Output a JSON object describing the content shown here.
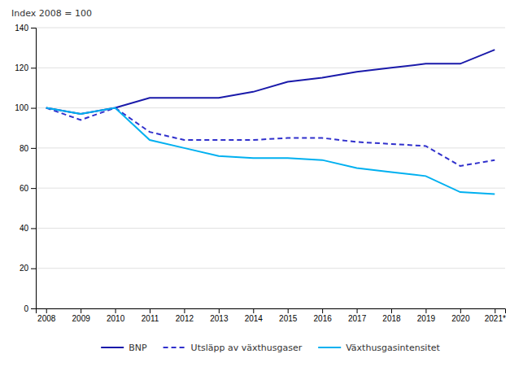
{
  "chart_data": {
    "type": "line",
    "y_label": "Index 2008 = 100",
    "x": [
      2008,
      2009,
      2010,
      2011,
      2012,
      2013,
      2014,
      2015,
      2016,
      2017,
      2018,
      2019,
      2020,
      2021
    ],
    "series": [
      {
        "name": "BNP",
        "color": "#1a1aaa",
        "line_style": "solid",
        "values": [
          100,
          97,
          100,
          105,
          105,
          105,
          108,
          113,
          115,
          118,
          120,
          122,
          122,
          129
        ]
      },
      {
        "name": "Utsläpp av växthusgaser",
        "color": "#3030cc",
        "line_style": "dashed",
        "values": [
          100,
          94,
          100,
          88,
          84,
          84,
          84,
          85,
          85,
          83,
          82,
          81,
          71,
          74
        ]
      },
      {
        "name": "Växthusgasintensitet",
        "color": "#00b0f0",
        "line_style": "solid",
        "values": [
          100,
          97,
          100,
          84,
          80,
          76,
          75,
          75,
          74,
          70,
          68,
          66,
          58,
          57
        ]
      }
    ],
    "xlim": [
      2007.7,
      2021.3
    ],
    "xticks": [
      2008,
      2009,
      2010,
      2011,
      2012,
      2013,
      2014,
      2015,
      2016,
      2017,
      2018,
      2019,
      2020,
      {
        "value": 2021,
        "label": "2021*"
      }
    ],
    "ylim": [
      0,
      140
    ],
    "yticks": [
      0,
      20,
      40,
      60,
      80,
      100,
      120,
      140
    ],
    "grid": true,
    "legend": "bottom"
  }
}
